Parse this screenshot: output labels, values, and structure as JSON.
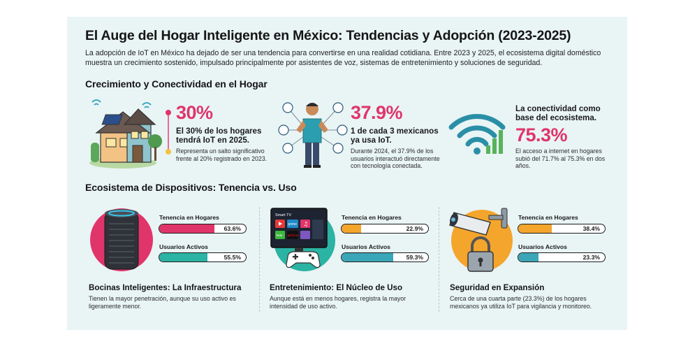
{
  "title": "El Auge del Hogar Inteligente en México: Tendencias y Adopción (2023-2025)",
  "intro": "La adopción de IoT en México ha dejado de ser una tendencia para convertirse en una realidad cotidiana. Entre 2023 y 2025, el ecosistema digital doméstico muestra un crecimiento sostenido, impulsado principalmente por asistentes de voz, sistemas de entretenimiento y soluciones de seguridad.",
  "section1": {
    "title": "Crecimiento y Conectividad en el Hogar",
    "stats": [
      {
        "value": "30%",
        "headline": "El 30% de los hogares tendrá IoT en 2025.",
        "body": "Representa un salto significativo frente al 20% registrado en 2023.",
        "color": "#e0356a",
        "icon": "smart-house-icon"
      },
      {
        "value": "37.9%",
        "headline": "1 de cada 3 mexicanos ya usa IoT.",
        "body": "Durante 2024, el 37.9% de los usuarios interactuó directamente con tecnología conectada.",
        "color": "#e0356a",
        "icon": "connected-person-icon"
      },
      {
        "value": "75.3%",
        "headline": "La conectividad como base del ecosistema.",
        "body": "El acceso a internet en hogares subió del 71.7% al 75.3% en dos años.",
        "color": "#e0356a",
        "icon": "wifi-signal-icon"
      }
    ]
  },
  "section2": {
    "title": "Ecosistema de Dispositivos: Tenencia vs. Uso",
    "ownership_label": "Tenencia en Hogares",
    "active_label": "Usuarios Activos",
    "devices": [
      {
        "name": "Bocinas Inteligentes: La Infraestructura",
        "body": "Tienen la mayor penetración, aunque su uso activo es ligeramente menor.",
        "ownership": 63.6,
        "ownership_text": "63.6%",
        "active": 55.5,
        "active_text": "55.5%",
        "ownership_color": "#e0356a",
        "active_color": "#2bb3a3",
        "icon": "smart-speaker-icon"
      },
      {
        "name": "Entretenimiento: El Núcleo de Uso",
        "body": "Aunque está en menos hogares, registra la mayor intensidad de uso activo.",
        "ownership": 22.9,
        "ownership_text": "22.9%",
        "active": 59.3,
        "active_text": "59.3%",
        "ownership_color": "#f4a52c",
        "active_color": "#3ba6b8",
        "icon": "smart-tv-icon",
        "tv_label": "Smart TV",
        "apps": [
          "prime",
          "hulu",
          "NETFLIX"
        ]
      },
      {
        "name": "Seguridad en Expansión",
        "body": "Cerca de una cuarta parte (23.3%) de los hogares mexicanos ya utiliza IoT para vigilancia y monitoreo.",
        "ownership": 38.4,
        "ownership_text": "38.4%",
        "active": 23.3,
        "active_text": "23.3%",
        "ownership_color": "#f4a52c",
        "active_color": "#3ba6b8",
        "icon": "security-camera-icon"
      }
    ]
  }
}
